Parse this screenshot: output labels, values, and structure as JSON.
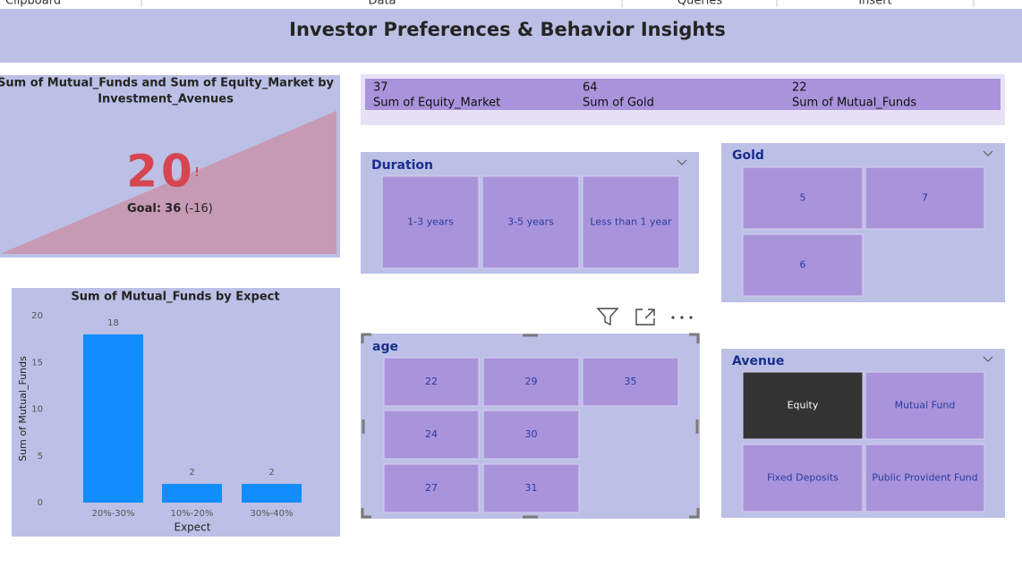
{
  "ribbon": {
    "groups": [
      "Clipboard",
      "Data",
      "Queries",
      "Insert"
    ]
  },
  "header": {
    "title": "Investor Preferences & Behavior Insights"
  },
  "kpi": {
    "title_lines": [
      "Sum of Mutual_Funds and Sum of Equity_Market by",
      "Investment_Avenues"
    ],
    "value": 20,
    "goal_label": "Goal:",
    "goal": 36,
    "delta": "(-16)"
  },
  "card": {
    "items": [
      {
        "value": 37,
        "label": "Sum of Equity_Market"
      },
      {
        "value": 64,
        "label": "Sum of Gold"
      },
      {
        "value": 22,
        "label": "Sum of Mutual_Funds"
      }
    ]
  },
  "slicers": {
    "duration": {
      "title": "Duration",
      "options": [
        "1-3 years",
        "3-5 years",
        "Less than 1 year"
      ]
    },
    "gold": {
      "title": "Gold",
      "options": [
        5,
        7,
        6
      ]
    },
    "age": {
      "title": "age",
      "options": [
        22,
        29,
        35,
        24,
        30,
        27,
        31
      ]
    },
    "avenue": {
      "title": "Avenue",
      "options": [
        "Equity",
        "Mutual Fund",
        "Fixed Deposits",
        "Public Provident Fund"
      ]
    }
  },
  "chart_data": {
    "type": "bar",
    "title": "Sum of Mutual_Funds by Expect",
    "x_label": "Expect",
    "y_label": "Sum of Mutual_Funds",
    "categories": [
      "20%-30%",
      "10%-20%",
      "30%-40%"
    ],
    "values": [
      18,
      2,
      2
    ],
    "color": "#118dff",
    "ylim": [
      0,
      20
    ],
    "yticks": [
      0,
      5,
      10,
      15,
      20
    ]
  }
}
